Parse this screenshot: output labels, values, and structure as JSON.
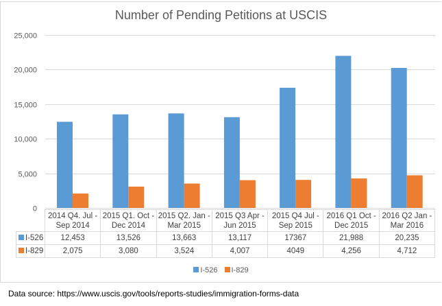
{
  "chart_data": {
    "type": "bar",
    "title": "Number of Pending Petitions at USCIS",
    "categories": [
      [
        "2014 Q4. Jul -",
        "Sep 2014"
      ],
      [
        "2015 Q1. Oct -",
        "Dec 2014"
      ],
      [
        "2015 Q2. Jan -",
        "Mar 2015"
      ],
      [
        "2015 Q3 Apr -",
        "Jun 2015"
      ],
      [
        "2015 Q4 Jul -",
        "Sep 2015"
      ],
      [
        "2016 Q1 Oct -",
        "Dec 2015"
      ],
      [
        "2016 Q2 Jan -",
        "Mar 2016"
      ]
    ],
    "series": [
      {
        "name": "I-526",
        "color": "#5b9bd5",
        "values": [
          12453,
          13526,
          13663,
          13117,
          17367,
          21988,
          20235
        ],
        "labels": [
          "12,453",
          "13,526",
          "13,663",
          "13,117",
          "17367",
          "21,988",
          "20,235"
        ]
      },
      {
        "name": "I-829",
        "color": "#ed7d31",
        "values": [
          2075,
          3080,
          3524,
          4007,
          4049,
          4256,
          4712
        ],
        "labels": [
          "2,075",
          "3,080",
          "3,524",
          "4,007",
          "4049",
          "4,256",
          "4,712"
        ]
      }
    ],
    "ylim": [
      0,
      25000
    ],
    "yticks": [
      0,
      5000,
      10000,
      15000,
      20000,
      25000
    ],
    "ytick_labels": [
      "0",
      "5,000",
      "10,000",
      "15,000",
      "20,000",
      "25,000"
    ],
    "xlabel": "",
    "ylabel": "",
    "grid": true,
    "legend": "bottom",
    "data_table": true
  },
  "source_note": "Data source: https://www.uscis.gov/tools/reports-studies/immigration-forms-data"
}
